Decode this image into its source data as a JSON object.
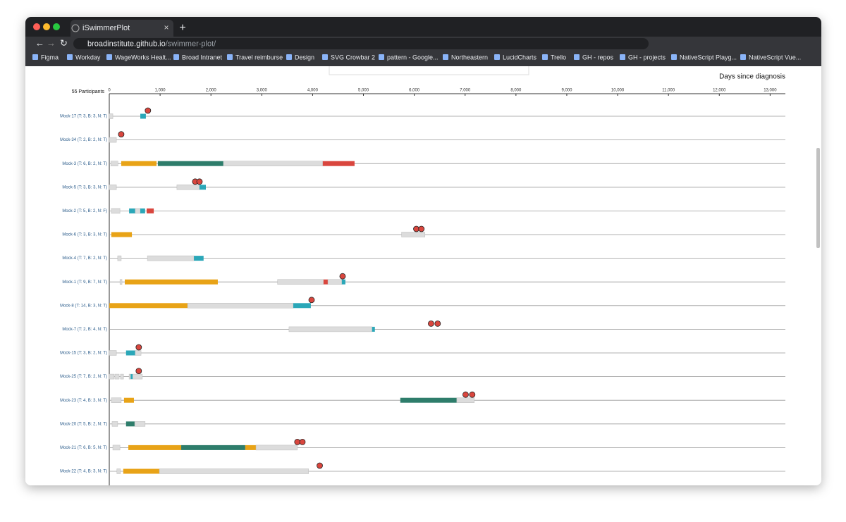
{
  "browser": {
    "tab_title": "iSwimmerPlot",
    "url_host": "broadinstitute.github.io",
    "url_path": "/swimmer-plot/",
    "bookmarks": [
      "Figma",
      "Workday",
      "WageWorks Healt...",
      "Broad Intranet",
      "Travel reimburse",
      "Design",
      "SVG Crowbar 2",
      "pattern - Google...",
      "Northeastern",
      "LucidCharts",
      "Trello",
      "GH - repos",
      "GH - projects",
      "NativeScript Playg...",
      "NativeScript Vue..."
    ]
  },
  "chart_data": {
    "type": "swimmer",
    "participants_label": "55 Participants",
    "x_label": "Days since diagnosis",
    "xlim": [
      0,
      13300
    ],
    "xticks": [
      0,
      {
        "value": 1000,
        "label": "1,000"
      },
      {
        "value": 2000,
        "label": "2,000"
      },
      {
        "value": 3000,
        "label": "3,000"
      },
      {
        "value": 4000,
        "label": "4,000"
      },
      {
        "value": 5000,
        "label": "5,000"
      },
      {
        "value": 6000,
        "label": "6,000"
      },
      {
        "value": 7000,
        "label": "7,000"
      },
      {
        "value": 8000,
        "label": "8,000"
      },
      {
        "value": 9000,
        "label": "9,000"
      },
      {
        "value": 10000,
        "label": "10,000"
      },
      {
        "value": 11000,
        "label": "11,000"
      },
      {
        "value": 12000,
        "label": "12,000"
      },
      {
        "value": 13000,
        "label": "13,000"
      }
    ],
    "rows": [
      {
        "label": "Mock-17 (T: 3, B: 3, N: T)",
        "segments": [
          {
            "start": 0,
            "end": 70,
            "color": "#dcdcdc"
          },
          {
            "start": 610,
            "end": 720,
            "color": "#2ba7b8"
          }
        ],
        "markers": [
          760
        ]
      },
      {
        "label": "Mock-34 (T: 2, B: 2, N: T)",
        "segments": [
          {
            "start": 0,
            "end": 140,
            "color": "#dcdcdc"
          }
        ],
        "markers": [
          235
        ]
      },
      {
        "label": "Mock-3 (T: 6, B: 2, N: T)",
        "segments": [
          {
            "start": 30,
            "end": 170,
            "color": "#dcdcdc"
          },
          {
            "start": 235,
            "end": 930,
            "color": "#e8a317"
          },
          {
            "start": 955,
            "end": 2245,
            "color": "#2e7d6b"
          },
          {
            "start": 2245,
            "end": 4200,
            "color": "#dcdcdc"
          },
          {
            "start": 4200,
            "end": 4825,
            "color": "#d9463e"
          }
        ],
        "markers": []
      },
      {
        "label": "Mock-5 (T: 3, B: 3, N: T)",
        "segments": [
          {
            "start": 0,
            "end": 140,
            "color": "#dcdcdc"
          },
          {
            "start": 1330,
            "end": 1775,
            "color": "#dcdcdc"
          },
          {
            "start": 1775,
            "end": 1900,
            "color": "#2ba7b8"
          }
        ],
        "markers": [
          1690,
          1775
        ]
      },
      {
        "label": "Mock-2 (T: 5, B: 2, N: F)",
        "segments": [
          {
            "start": 40,
            "end": 210,
            "color": "#dcdcdc"
          },
          {
            "start": 390,
            "end": 510,
            "color": "#2ba7b8"
          },
          {
            "start": 510,
            "end": 610,
            "color": "#dcdcdc"
          },
          {
            "start": 610,
            "end": 705,
            "color": "#2ba7b8"
          },
          {
            "start": 735,
            "end": 875,
            "color": "#d9463e"
          }
        ],
        "markers": []
      },
      {
        "label": "Mock-6 (T: 3, B: 3, N: T)",
        "segments": [
          {
            "start": 40,
            "end": 445,
            "color": "#e8a317"
          },
          {
            "start": 5750,
            "end": 6210,
            "color": "#dcdcdc"
          }
        ],
        "markers": [
          6040,
          6140
        ]
      },
      {
        "label": "Mock-4 (T: 7, B: 2, N: T)",
        "segments": [
          {
            "start": 165,
            "end": 235,
            "color": "#dcdcdc"
          },
          {
            "start": 750,
            "end": 1665,
            "color": "#dcdcdc"
          },
          {
            "start": 1665,
            "end": 1855,
            "color": "#2ba7b8"
          }
        ],
        "markers": []
      },
      {
        "label": "Mock-1 (T: 9, B: 7, N: T)",
        "segments": [
          {
            "start": 210,
            "end": 250,
            "color": "#dcdcdc"
          },
          {
            "start": 305,
            "end": 2135,
            "color": "#e8a317"
          },
          {
            "start": 3310,
            "end": 4215,
            "color": "#dcdcdc"
          },
          {
            "start": 4215,
            "end": 4300,
            "color": "#d9463e"
          },
          {
            "start": 4300,
            "end": 4575,
            "color": "#dcdcdc"
          },
          {
            "start": 4575,
            "end": 4645,
            "color": "#2ba7b8"
          }
        ],
        "markers": [
          4590
        ]
      },
      {
        "label": "Mock-8 (T: 14, B: 3, N: T)",
        "segments": [
          {
            "start": 0,
            "end": 1540,
            "color": "#e8a317"
          },
          {
            "start": 1540,
            "end": 3620,
            "color": "#dcdcdc"
          },
          {
            "start": 3620,
            "end": 3965,
            "color": "#2ba7b8"
          }
        ],
        "markers": [
          3980
        ]
      },
      {
        "label": "Mock-7 (T: 2, B: 4, N: T)",
        "segments": [
          {
            "start": 3535,
            "end": 5170,
            "color": "#dcdcdc"
          },
          {
            "start": 5170,
            "end": 5225,
            "color": "#2ba7b8"
          }
        ],
        "markers": [
          6330,
          6460
        ]
      },
      {
        "label": "Mock-15 (T: 3, B: 2, N: T)",
        "segments": [
          {
            "start": 0,
            "end": 140,
            "color": "#dcdcdc"
          },
          {
            "start": 330,
            "end": 510,
            "color": "#2ba7b8"
          },
          {
            "start": 510,
            "end": 625,
            "color": "#dcdcdc"
          }
        ],
        "markers": [
          580
        ]
      },
      {
        "label": "Mock-25 (T: 7, B: 2, N: T)",
        "segments": [
          {
            "start": 0,
            "end": 95,
            "color": "#dcdcdc"
          },
          {
            "start": 110,
            "end": 195,
            "color": "#dcdcdc"
          },
          {
            "start": 220,
            "end": 280,
            "color": "#dcdcdc"
          },
          {
            "start": 390,
            "end": 650,
            "color": "#dcdcdc"
          },
          {
            "start": 420,
            "end": 460,
            "color": "#2ba7b8"
          }
        ],
        "markers": [
          580
        ]
      },
      {
        "label": "Mock-23 (T: 4, B: 3, N: T)",
        "segments": [
          {
            "start": 40,
            "end": 235,
            "color": "#dcdcdc"
          },
          {
            "start": 290,
            "end": 485,
            "color": "#e8a317"
          },
          {
            "start": 5725,
            "end": 6835,
            "color": "#2e7d6b"
          },
          {
            "start": 6835,
            "end": 7180,
            "color": "#dcdcdc"
          }
        ],
        "markers": [
          7010,
          7140
        ]
      },
      {
        "label": "Mock-20 (T: 5, B: 2, N: T)",
        "segments": [
          {
            "start": 55,
            "end": 165,
            "color": "#dcdcdc"
          },
          {
            "start": 330,
            "end": 500,
            "color": "#2e7d6b"
          },
          {
            "start": 500,
            "end": 705,
            "color": "#dcdcdc"
          }
        ],
        "markers": []
      },
      {
        "label": "Mock-21 (T: 6, B: 5, N: T)",
        "segments": [
          {
            "start": 70,
            "end": 210,
            "color": "#dcdcdc"
          },
          {
            "start": 375,
            "end": 1415,
            "color": "#e8a317"
          },
          {
            "start": 1415,
            "end": 2675,
            "color": "#2e7d6b"
          },
          {
            "start": 2675,
            "end": 2885,
            "color": "#e8a317"
          },
          {
            "start": 2885,
            "end": 3700,
            "color": "#dcdcdc"
          }
        ],
        "markers": [
          3700,
          3800
        ]
      },
      {
        "label": "Mock-22 (T: 4, B: 3, N: T)",
        "segments": [
          {
            "start": 150,
            "end": 220,
            "color": "#dcdcdc"
          },
          {
            "start": 275,
            "end": 985,
            "color": "#e8a317"
          },
          {
            "start": 985,
            "end": 3920,
            "color": "#dcdcdc"
          }
        ],
        "markers": [
          4140
        ]
      }
    ]
  }
}
